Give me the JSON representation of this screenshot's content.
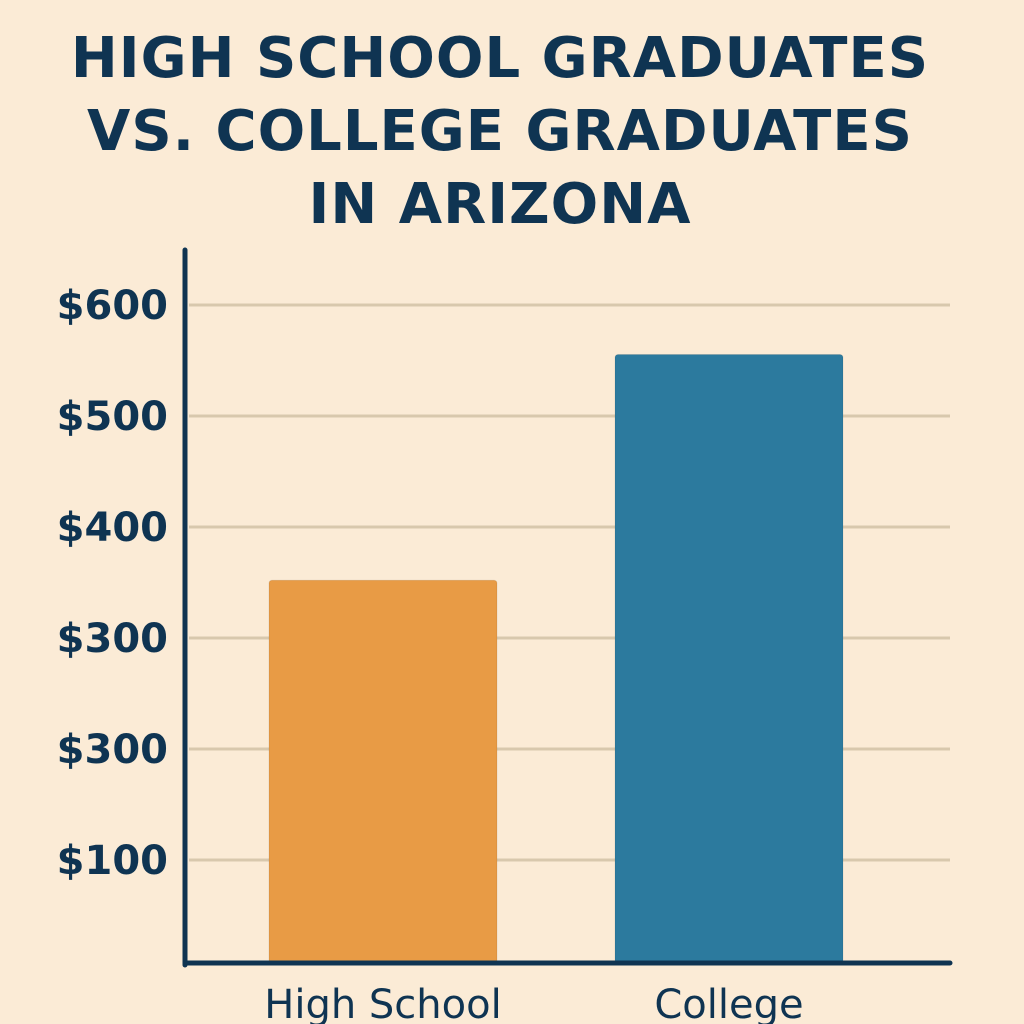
{
  "chart_data": {
    "type": "bar",
    "title": "HIGH SCHOOL GRADUATES\nVS. COLLEGE GRADUATES\nIN ARIZONA",
    "categories": [
      "High School",
      "College"
    ],
    "values": [
      360,
      565
    ],
    "ytick_labels": [
      "$100",
      "$300",
      "$300",
      "$400",
      "$500",
      "$600"
    ],
    "ylim": [
      5,
      610
    ],
    "grid": true,
    "legend": "none",
    "colors": [
      "#e89b45",
      "#2c7a9e"
    ],
    "axis_color": "#0f3452",
    "grid_color": "#d8c8ad"
  }
}
